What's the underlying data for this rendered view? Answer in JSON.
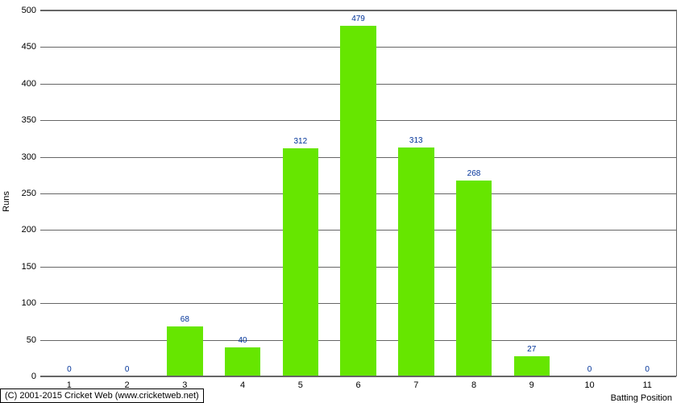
{
  "chart": {
    "type": "bar",
    "categories": [
      "1",
      "2",
      "3",
      "4",
      "5",
      "6",
      "7",
      "8",
      "9",
      "10",
      "11"
    ],
    "values": [
      0,
      0,
      68,
      40,
      312,
      479,
      313,
      268,
      27,
      0,
      0
    ],
    "bar_color": "#66e600",
    "value_label_color": "#003399",
    "ylabel": "Runs",
    "xlabel": "Batting Position",
    "ylim_max": 500,
    "ytick_step": 50,
    "yticks": [
      0,
      50,
      100,
      150,
      200,
      250,
      300,
      350,
      400,
      450,
      500
    ],
    "background_color": "#ffffff",
    "grid_color": "#666666",
    "axis_fontsize": 11,
    "value_fontsize": 10
  },
  "footer": {
    "copyright": "(C) 2001-2015 Cricket Web (www.cricketweb.net)"
  }
}
